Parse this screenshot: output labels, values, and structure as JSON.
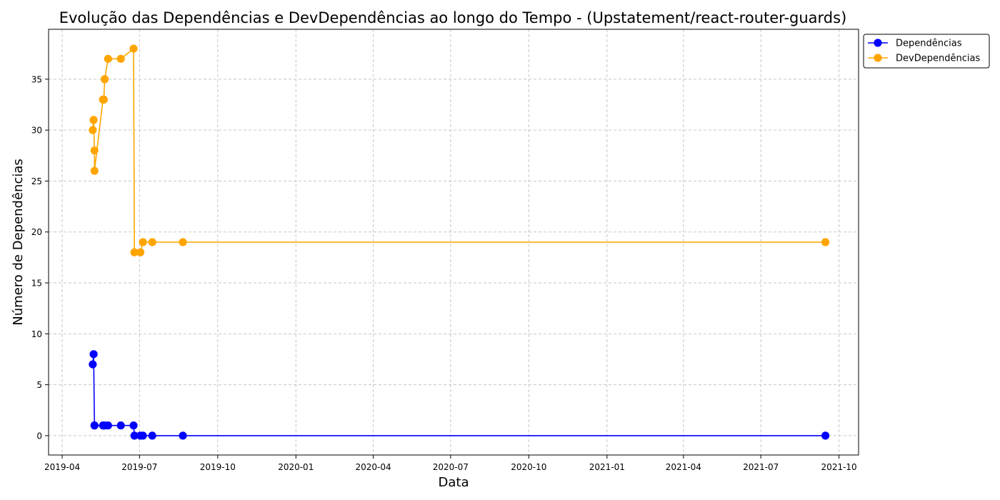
{
  "chart_data": {
    "type": "line",
    "title": "Evolução das Dependências e DevDependências ao longo do Tempo - (Upstatement/react-router-guards)",
    "xlabel": "Data",
    "ylabel": "Número de Dependências",
    "x_ticks": [
      "2019-04",
      "2019-07",
      "2019-10",
      "2020-01",
      "2020-04",
      "2020-07",
      "2020-10",
      "2021-01",
      "2021-04",
      "2021-07",
      "2021-10"
    ],
    "y_ticks": [
      0,
      5,
      10,
      15,
      20,
      25,
      30,
      35
    ],
    "ylim": [
      -1.9,
      39.9
    ],
    "xlim": [
      "2019-03-16",
      "2021-10-24"
    ],
    "grid": true,
    "legend_position": "top-right, outside plot",
    "x": [
      "2019-05-07",
      "2019-05-08",
      "2019-05-09",
      "2019-05-09",
      "2019-05-19",
      "2019-05-20",
      "2019-05-21",
      "2019-05-25",
      "2019-06-09",
      "2019-06-24",
      "2019-06-25",
      "2019-07-02",
      "2019-07-05",
      "2019-07-16",
      "2019-08-21",
      "2021-09-15"
    ],
    "series": [
      {
        "name": "Dependências",
        "color": "#0000ff",
        "values": [
          7,
          8,
          1,
          1,
          1,
          1,
          1,
          1,
          1,
          1,
          0,
          0,
          0,
          0,
          0,
          0
        ]
      },
      {
        "name": "DevDependências",
        "color": "#ffa500",
        "values": [
          30,
          31,
          28,
          26,
          33,
          33,
          35,
          37,
          37,
          38,
          18,
          18,
          19,
          19,
          19,
          19
        ]
      }
    ]
  }
}
